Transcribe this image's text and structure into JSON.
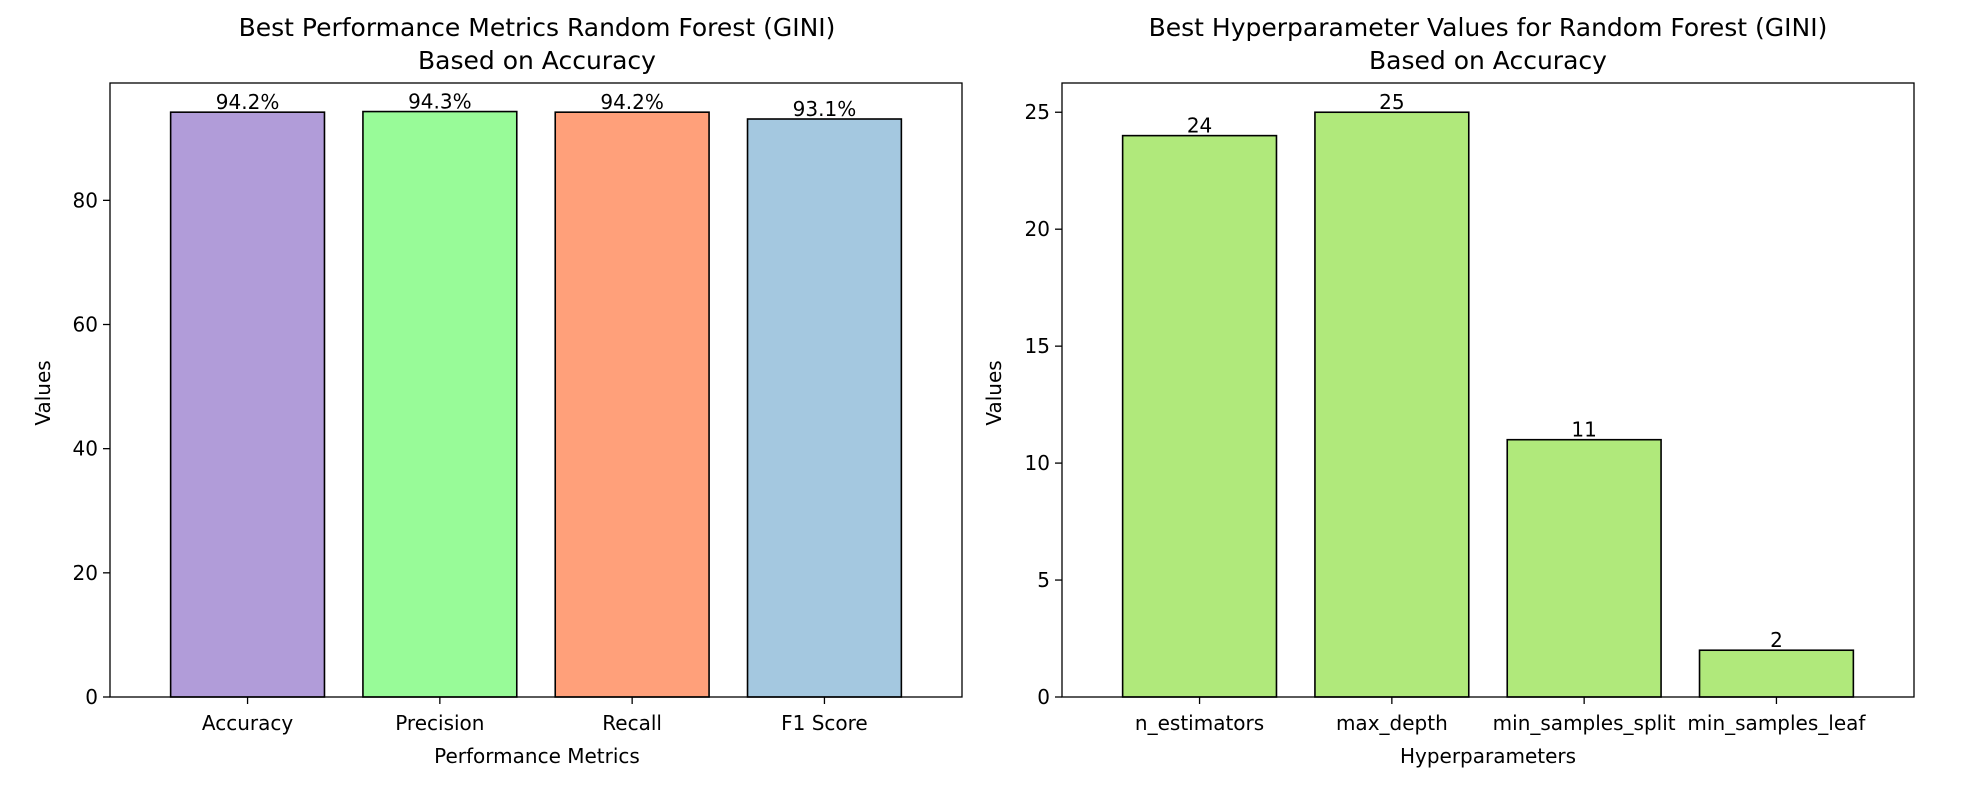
{
  "chart_data": [
    {
      "type": "bar",
      "title_lines": [
        "Best Performance Metrics Random Forest (GINI)",
        "Based on Accuracy"
      ],
      "xlabel": "Performance Metrics",
      "ylabel": "Values",
      "categories": [
        "Accuracy",
        "Precision",
        "Recall",
        "F1 Score"
      ],
      "values": [
        94.2,
        94.3,
        94.2,
        93.1
      ],
      "value_labels": [
        "94.2%",
        "94.3%",
        "94.2%",
        "93.1%"
      ],
      "colors": [
        "#b19cd9",
        "#98fb98",
        "#ffa07a",
        "#a4c8e0"
      ],
      "ylim": [
        0,
        98.9
      ],
      "yticks": [
        0,
        20,
        40,
        60,
        80
      ],
      "ytick_labels": [
        "0",
        "20",
        "40",
        "60",
        "80"
      ],
      "grid": false,
      "legend": "none"
    },
    {
      "type": "bar",
      "title_lines": [
        "Best Hyperparameter Values for Random Forest (GINI)",
        "Based on Accuracy"
      ],
      "xlabel": "Hyperparameters",
      "ylabel": "Values",
      "categories": [
        "n_estimators",
        "max_depth",
        "min_samples_split",
        "min_samples_leaf"
      ],
      "values": [
        24,
        25,
        11,
        2
      ],
      "value_labels": [
        "24",
        "25",
        "11",
        "2"
      ],
      "colors": [
        "#b0e97b",
        "#b0e97b",
        "#b0e97b",
        "#b0e97b"
      ],
      "ylim": [
        0,
        26.25
      ],
      "yticks": [
        0,
        5,
        10,
        15,
        20,
        25
      ],
      "ytick_labels": [
        "0",
        "5",
        "10",
        "15",
        "20",
        "25"
      ],
      "grid": false,
      "legend": "none"
    }
  ]
}
